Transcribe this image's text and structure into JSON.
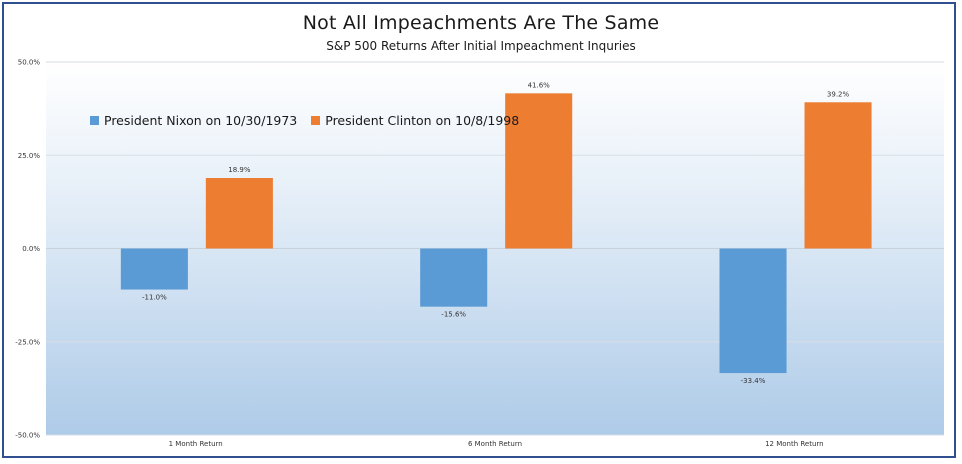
{
  "chart_data": {
    "type": "bar",
    "title": "Not All Impeachments  Are The Same",
    "subtitle": "S&P 500 Returns After Initial Impeachment Inquries",
    "categories": [
      "1 Month Return",
      "6 Month Return",
      "12 Month Return"
    ],
    "series": [
      {
        "name": "President Nixon on 10/30/1973",
        "values": [
          -11.0,
          -15.6,
          -33.4
        ],
        "labels": [
          "-11.0%",
          "-15.6%",
          "-33.4%"
        ],
        "color": "#5b9bd5"
      },
      {
        "name": "President Clinton on 10/8/1998",
        "values": [
          18.9,
          41.6,
          39.2
        ],
        "labels": [
          "18.9%",
          "41.6%",
          "39.2%"
        ],
        "color": "#ed7d31"
      }
    ],
    "ylim": [
      -50,
      50
    ],
    "yticks": [
      50,
      25,
      0,
      -25,
      -50
    ],
    "ytick_labels": [
      "50.0%",
      "25.0%",
      "0.0%",
      "-25.0%",
      "-50.0%"
    ],
    "grid": true,
    "legend_position": "top-left"
  }
}
